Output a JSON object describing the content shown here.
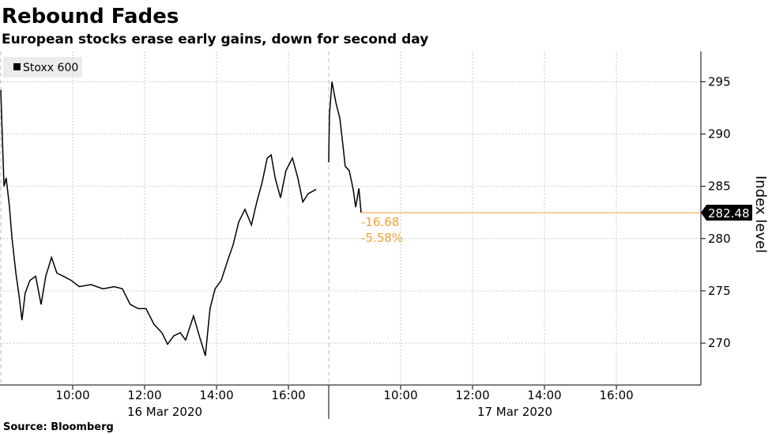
{
  "title": "Rebound Fades",
  "subtitle": "European stocks erase early gains, down for second day",
  "source": "Source: Bloomberg",
  "chart_data": [
    {
      "type": "line",
      "x": [
        8.0,
        8.04,
        8.09,
        8.15,
        8.24,
        8.31,
        8.42,
        8.51,
        8.59,
        8.68,
        8.81,
        8.97,
        9.12,
        9.25,
        9.41,
        9.56,
        9.74,
        9.96,
        10.18,
        10.51,
        10.84,
        11.16,
        11.38,
        11.6,
        11.82,
        12.04,
        12.26,
        12.48,
        12.64,
        12.81,
        12.99,
        13.14,
        13.36,
        13.52,
        13.69,
        13.82,
        13.96,
        14.13,
        14.31,
        14.46,
        14.62,
        14.79,
        14.97,
        15.12,
        15.27,
        15.41,
        15.52,
        15.63,
        15.78,
        15.93,
        16.11,
        16.26,
        16.4,
        16.55,
        16.77
      ],
      "series": [
        {
          "name": "Stoxx 600",
          "color": "#000000",
          "values": [
            294.2,
            290.0,
            285.0,
            285.8,
            283.1,
            280.1,
            276.7,
            274.5,
            272.2,
            274.8,
            276.0,
            276.4,
            273.7,
            276.4,
            278.2,
            276.7,
            276.4,
            276.0,
            275.4,
            275.6,
            275.2,
            275.4,
            275.2,
            273.7,
            273.3,
            273.3,
            271.8,
            271.0,
            269.9,
            270.7,
            271.0,
            270.3,
            272.6,
            270.7,
            268.8,
            273.3,
            275.2,
            276.0,
            277.9,
            279.4,
            281.6,
            282.8,
            281.3,
            283.5,
            285.4,
            287.7,
            288.0,
            285.8,
            283.9,
            286.5,
            287.7,
            285.8,
            283.5,
            284.3,
            284.7
          ]
        }
      ],
      "xlim": [
        8,
        17.12
      ],
      "xticks": [
        {
          "value": 10,
          "label": "10:00"
        },
        {
          "value": 12,
          "label": "12:00"
        },
        {
          "value": 14,
          "label": "14:00"
        },
        {
          "value": 16,
          "label": "16:00"
        }
      ],
      "x_label": "16 Mar 2020",
      "ylim": [
        266,
        297.9
      ],
      "grid": true
    },
    {
      "type": "line",
      "x": [
        8.0,
        8.02,
        8.09,
        8.2,
        8.31,
        8.4,
        8.46,
        8.57,
        8.68,
        8.75,
        8.84,
        8.9
      ],
      "series": [
        {
          "color": "#000000",
          "values": [
            287.3,
            291.8,
            295.0,
            293.0,
            291.5,
            288.8,
            286.9,
            286.5,
            284.7,
            283.0,
            284.8,
            282.48
          ]
        }
      ],
      "xlim": [
        8,
        18.35
      ],
      "xticks": [
        {
          "value": 10,
          "label": "10:00"
        },
        {
          "value": 12,
          "label": "12:00"
        },
        {
          "value": 14,
          "label": "14:00"
        },
        {
          "value": 16,
          "label": "16:00"
        }
      ],
      "x_label": "17 Mar 2020",
      "ylim": [
        266,
        297.9
      ],
      "yticks": [
        270,
        275,
        280,
        285,
        290,
        295
      ],
      "y_label": "Index level",
      "grid": true,
      "last_value": 282.48,
      "change": -16.68,
      "change_pct": {
        "value": -5.58,
        "label": "-5.58%"
      },
      "annotation_color": "#f0a030"
    }
  ]
}
